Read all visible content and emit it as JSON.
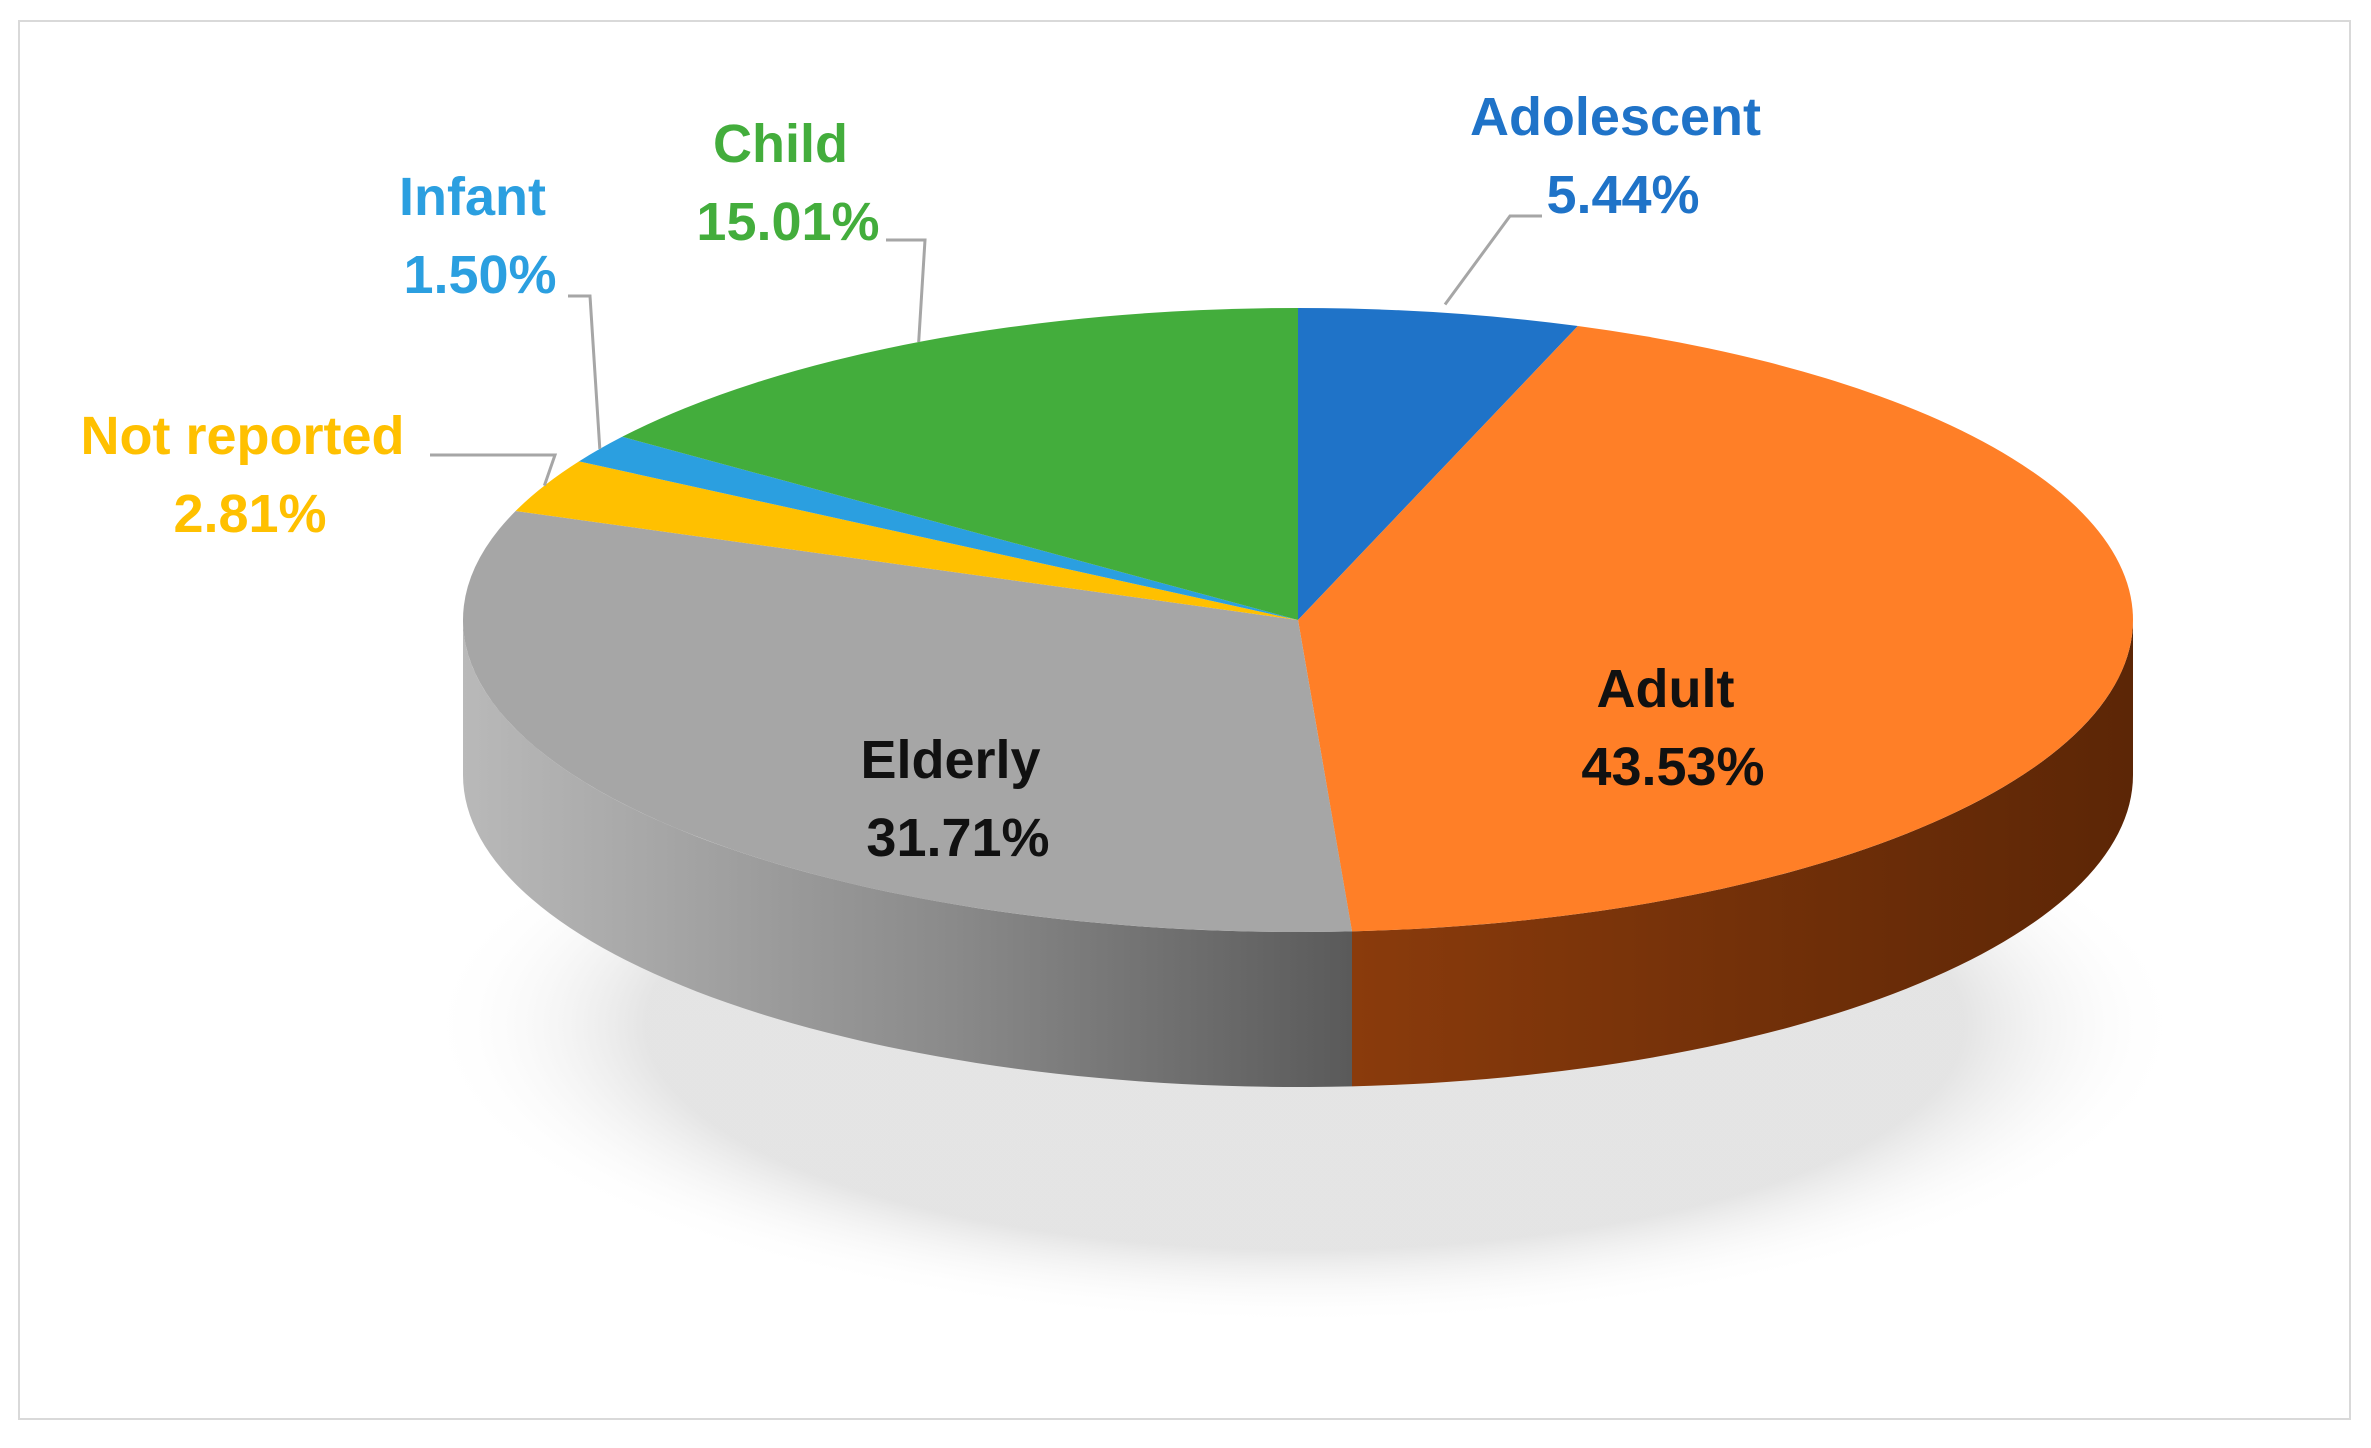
{
  "chart_data": {
    "type": "pie",
    "title": "",
    "style": "3d",
    "slices": [
      {
        "label": "Adolescent",
        "value": 5.44,
        "display": "5.44%",
        "color": "#1f73c8",
        "label_color": "#1f73c8"
      },
      {
        "label": "Adult",
        "value": 43.53,
        "display": "43.53%",
        "color": "#ff7f27",
        "label_color": "#111111"
      },
      {
        "label": "Elderly",
        "value": 31.71,
        "display": "31.71%",
        "color": "#a6a6a6",
        "label_color": "#111111"
      },
      {
        "label": "Not reported",
        "value": 2.81,
        "display": "2.81%",
        "color": "#ffc000",
        "label_color": "#ffc000"
      },
      {
        "label": "Infant",
        "value": 1.5,
        "display": "1.50%",
        "color": "#2b9fe0",
        "label_color": "#2b9fe0"
      },
      {
        "label": "Child",
        "value": 15.01,
        "display": "15.01%",
        "color": "#43ad3c",
        "label_color": "#43ad3c"
      }
    ],
    "legend": "none",
    "data_labels": "category-and-percent"
  }
}
